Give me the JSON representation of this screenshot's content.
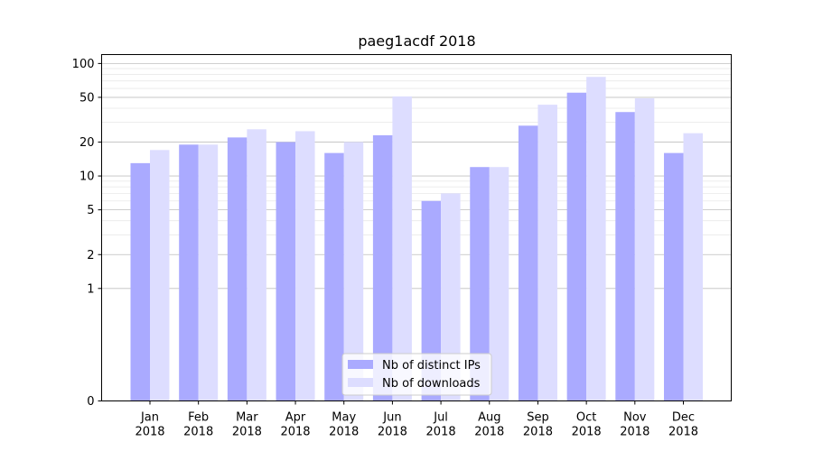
{
  "chart_data": {
    "type": "bar",
    "title": "paeg1acdf 2018",
    "xlabel": "",
    "ylabel": "",
    "yscale": "symlog",
    "ylim": [
      0,
      120
    ],
    "yticks": [
      0,
      1,
      2,
      5,
      10,
      20,
      50,
      100
    ],
    "ytick_labels": [
      "0",
      "1",
      "2",
      "5",
      "10",
      "20",
      "50",
      "100"
    ],
    "grid": true,
    "legend_position": "bottom-center",
    "categories": [
      [
        "Jan",
        "2018"
      ],
      [
        "Feb",
        "2018"
      ],
      [
        "Mar",
        "2018"
      ],
      [
        "Apr",
        "2018"
      ],
      [
        "May",
        "2018"
      ],
      [
        "Jun",
        "2018"
      ],
      [
        "Jul",
        "2018"
      ],
      [
        "Aug",
        "2018"
      ],
      [
        "Sep",
        "2018"
      ],
      [
        "Oct",
        "2018"
      ],
      [
        "Nov",
        "2018"
      ],
      [
        "Dec",
        "2018"
      ]
    ],
    "series": [
      {
        "name": "Nb of distinct IPs",
        "color": "#aaaaff",
        "values": [
          13,
          19,
          22,
          20,
          16,
          23,
          6,
          12,
          28,
          55,
          37,
          16
        ]
      },
      {
        "name": "Nb of downloads",
        "color": "#ddddff",
        "values": [
          17,
          19,
          26,
          25,
          20,
          51,
          7,
          12,
          43,
          76,
          49,
          24
        ]
      }
    ]
  }
}
